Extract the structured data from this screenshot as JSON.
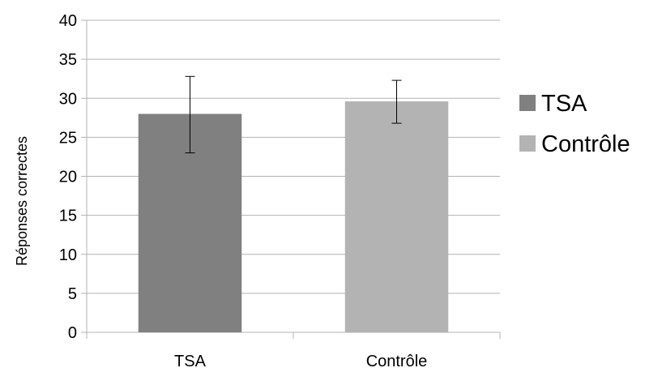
{
  "chart_data": {
    "type": "bar",
    "title": "",
    "xlabel": "",
    "ylabel": "Réponses correctes",
    "ylim": [
      0,
      40
    ],
    "yticks": [
      0,
      5,
      10,
      15,
      20,
      25,
      30,
      35,
      40
    ],
    "ytick_labels": [
      "0",
      "5",
      "10",
      "15",
      "20",
      "25",
      "30",
      "35",
      "40"
    ],
    "categories": [
      "TSA",
      "Contrôle"
    ],
    "values": [
      28,
      29.6
    ],
    "error_bars": [
      {
        "low": 23,
        "high": 32.8
      },
      {
        "low": 26.8,
        "high": 32.3
      }
    ],
    "colors": [
      "#808080",
      "#b3b3b3"
    ],
    "grid": true,
    "legend": {
      "position": "right",
      "entries": [
        {
          "label": "TSA",
          "color": "#808080"
        },
        {
          "label": "Contrôle",
          "color": "#b3b3b3"
        }
      ]
    }
  }
}
